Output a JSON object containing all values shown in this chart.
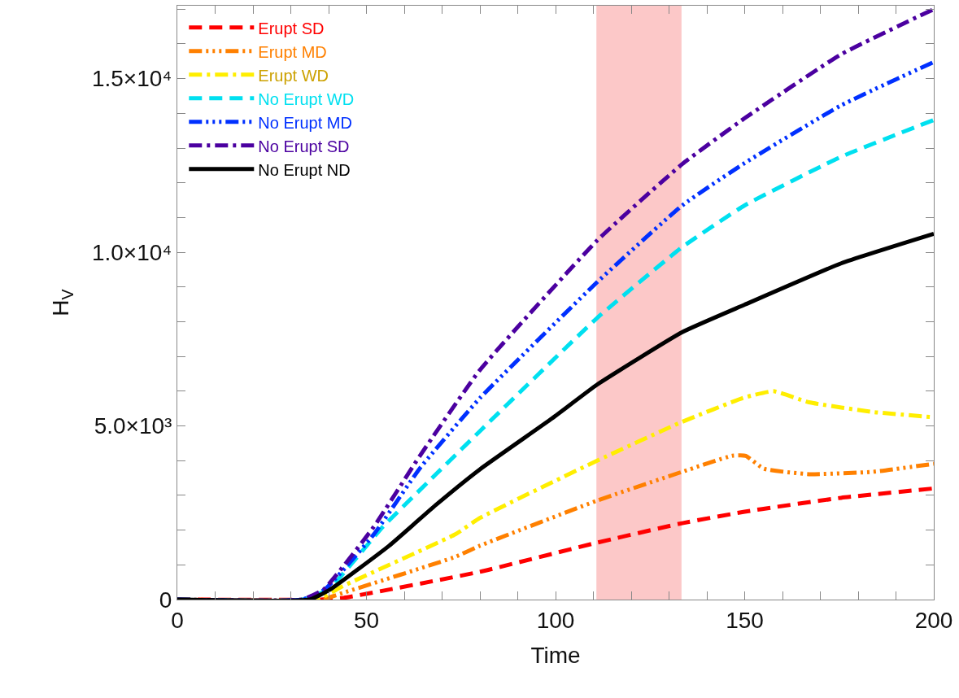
{
  "chart_data": {
    "type": "line",
    "xlabel": "Time",
    "ylabel": "H$_{V}$",
    "xlim": [
      0,
      200
    ],
    "ylim": [
      0,
      17100
    ],
    "xticks": [
      0,
      {
        "value": 10,
        "label": null
      },
      {
        "value": 20,
        "label": null
      },
      {
        "value": 30,
        "label": null
      },
      {
        "value": 40,
        "label": null
      },
      50,
      {
        "value": 60,
        "label": null
      },
      {
        "value": 70,
        "label": null
      },
      {
        "value": 80,
        "label": null
      },
      {
        "value": 90,
        "label": null
      },
      100,
      {
        "value": 110,
        "label": null
      },
      {
        "value": 120,
        "label": null
      },
      {
        "value": 130,
        "label": null
      },
      {
        "value": 140,
        "label": null
      },
      150,
      {
        "value": 160,
        "label": null
      },
      {
        "value": 170,
        "label": null
      },
      {
        "value": 180,
        "label": null
      },
      {
        "value": 190,
        "label": null
      },
      200
    ],
    "yticks": [
      {
        "value": 0,
        "label": "0"
      },
      {
        "value": 1000,
        "label": null
      },
      {
        "value": 2000,
        "label": null
      },
      {
        "value": 3000,
        "label": null
      },
      {
        "value": 4000,
        "label": null
      },
      {
        "value": 5000,
        "label": "5.0×10³"
      },
      {
        "value": 6000,
        "label": null
      },
      {
        "value": 7000,
        "label": null
      },
      {
        "value": 8000,
        "label": null
      },
      {
        "value": 9000,
        "label": null
      },
      {
        "value": 10000,
        "label": "1.0×10⁴"
      },
      {
        "value": 11000,
        "label": null
      },
      {
        "value": 12000,
        "label": null
      },
      {
        "value": 13000,
        "label": null
      },
      {
        "value": 14000,
        "label": null
      },
      {
        "value": 15000,
        "label": "1.5×10⁴"
      },
      {
        "value": 16000,
        "label": null
      },
      {
        "value": 17000,
        "label": null
      }
    ],
    "grid": false,
    "legend": "top left",
    "bands": [
      {
        "axis": "x",
        "from": 110.8,
        "to": 133.3,
        "color": "#fcc8c8"
      }
    ],
    "series": [
      {
        "name": "Erupt SD",
        "color": "#ff0000",
        "line_style": "dashed",
        "x": [
          0,
          38,
          44,
          80,
          111,
          133.5,
          150,
          158.5,
          175.5,
          200
        ],
        "values": [
          0,
          0,
          50,
          800,
          1640,
          2200,
          2530,
          2670,
          2930,
          3200
        ]
      },
      {
        "name": "Erupt MD",
        "color": "#ff8000",
        "line_style": "dashdotdot",
        "x": [
          0,
          38,
          44,
          73.5,
          80,
          111,
          133.5,
          146.7,
          150.3,
          155,
          167,
          184,
          200
        ],
        "values": [
          0,
          0,
          200,
          1230,
          1550,
          2850,
          3680,
          4140,
          4140,
          3770,
          3610,
          3680,
          3910
        ]
      },
      {
        "name": "Erupt WD",
        "color": "#ffee00",
        "line_style": "dashdot",
        "x": [
          0,
          37,
          43.6,
          73.5,
          80,
          111,
          133.5,
          150,
          157.6,
          167,
          184,
          200
        ],
        "values": [
          0,
          0,
          380,
          1880,
          2350,
          4000,
          5120,
          5820,
          6000,
          5680,
          5400,
          5250
        ]
      },
      {
        "name": "No Erupt WD",
        "color": "#00e0f0",
        "line_style": "dashed",
        "x": [
          0,
          33,
          40,
          54.3,
          68.3,
          80,
          111,
          133.5,
          150,
          175.5,
          200
        ],
        "values": [
          0,
          0,
          300,
          2090,
          3600,
          4850,
          8110,
          10150,
          11350,
          12750,
          13810
        ]
      },
      {
        "name": "No Erupt MD",
        "color": "#0030ff",
        "line_style": "dashdotdot",
        "x": [
          0,
          33,
          39,
          51.9,
          64.2,
          80,
          111,
          133.5,
          150,
          175.5,
          200
        ],
        "values": [
          0,
          0,
          290,
          1870,
          3790,
          5800,
          9140,
          11350,
          12570,
          14230,
          15480
        ]
      },
      {
        "name": "No Erupt SD",
        "color": "#4b00a0",
        "line_style": "dashdot",
        "x": [
          0,
          33,
          38.7,
          51.9,
          64.2,
          80,
          111,
          133.5,
          150,
          175.5,
          200
        ],
        "values": [
          0,
          0,
          290,
          2090,
          4150,
          6610,
          10340,
          12540,
          13860,
          15700,
          17000
        ]
      },
      {
        "name": "No Erupt ND",
        "color": "#000000",
        "line_style": "solid",
        "x": [
          0,
          35,
          40.4,
          56,
          68.3,
          80,
          99,
          111,
          133.5,
          150,
          175.5,
          200
        ],
        "values": [
          0,
          0,
          290,
          1550,
          2720,
          3750,
          5210,
          6190,
          7700,
          8490,
          9680,
          10530
        ]
      }
    ]
  }
}
